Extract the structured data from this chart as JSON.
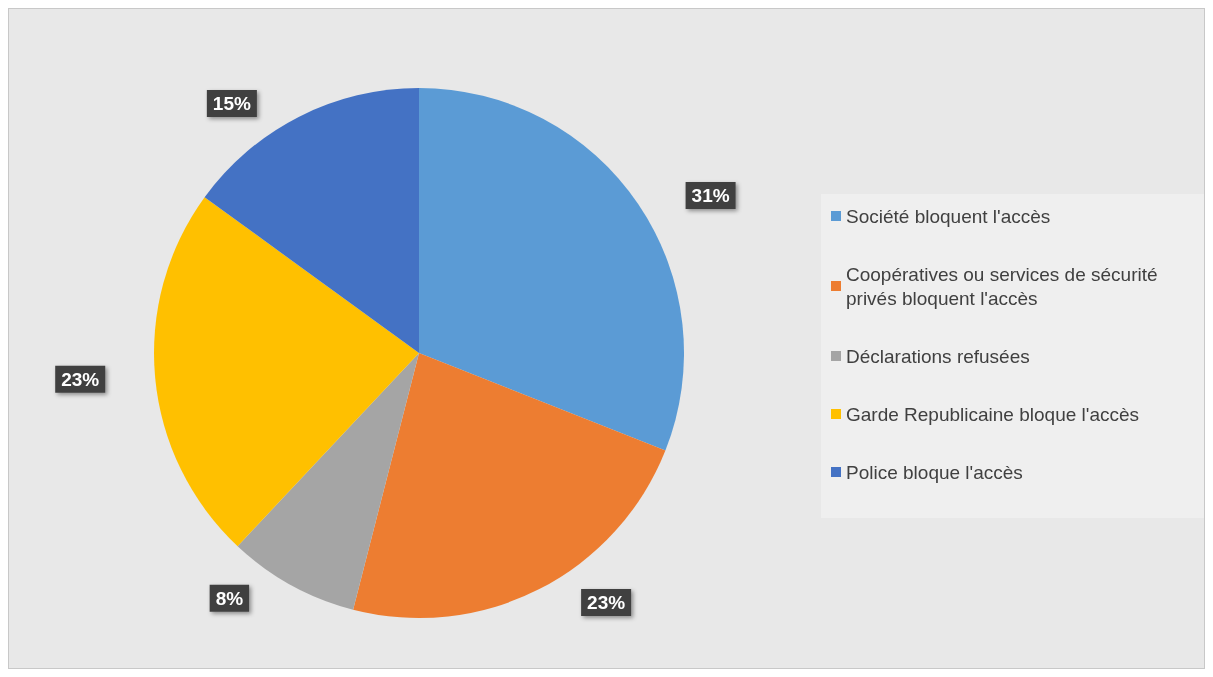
{
  "chart_data": {
    "type": "pie",
    "categories": [
      "Société bloquent l'accès",
      "Coopératives ou services de sécurité privés bloquent l'accès",
      "Déclarations refusées",
      "Garde Republicaine bloque l'accès",
      "Police bloque l'accès"
    ],
    "values": [
      31,
      23,
      8,
      23,
      15
    ],
    "colors": [
      "#5b9bd5",
      "#ed7d31",
      "#a5a5a5",
      "#ffc000",
      "#4472c4"
    ],
    "value_labels": [
      "31%",
      "23%",
      "8%",
      "23%",
      "15%"
    ],
    "legend": "right"
  }
}
